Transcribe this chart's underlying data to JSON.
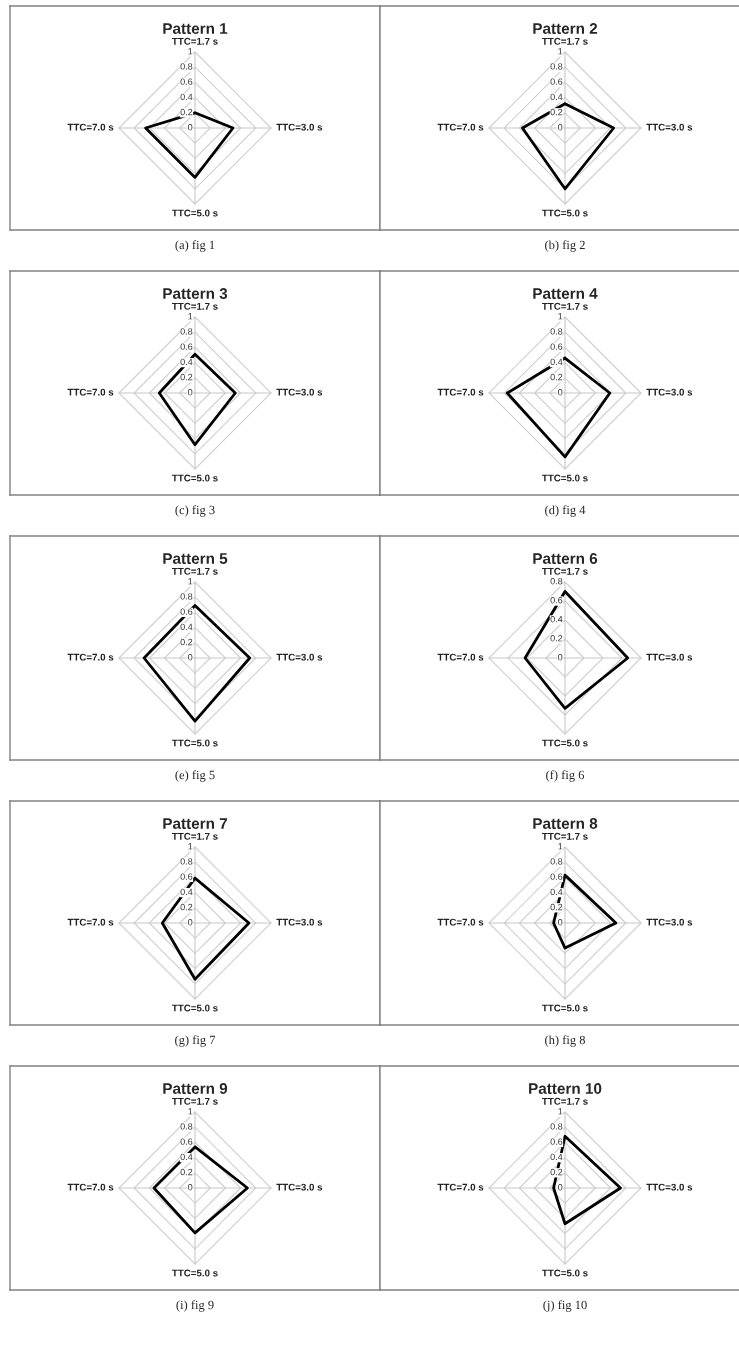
{
  "chart_data": [
    {
      "type": "radar",
      "title": "Pattern 1",
      "categories": [
        "TTC=1.7 s",
        "TTC=3.0 s",
        "TTC=5.0 s",
        "TTC=7.0 s"
      ],
      "series": [
        {
          "color": "#000000",
          "values": [
            0.2,
            0.5,
            0.65,
            0.65
          ]
        }
      ],
      "ylim": [
        0,
        1
      ],
      "yticks": [
        0,
        0.2,
        0.4,
        0.6,
        0.8,
        1
      ],
      "grid": true,
      "annotations": [
        "(a) fig 1"
      ]
    },
    {
      "type": "radar",
      "title": "Pattern 2",
      "categories": [
        "TTC=1.7 s",
        "TTC=3.0 s",
        "TTC=5.0 s",
        "TTC=7.0 s"
      ],
      "series": [
        {
          "color": "#000000",
          "values": [
            0.32,
            0.64,
            0.8,
            0.56
          ]
        }
      ],
      "ylim": [
        0,
        1
      ],
      "yticks": [
        0,
        0.2,
        0.4,
        0.6,
        0.8,
        1
      ],
      "grid": true,
      "annotations": [
        "(b) fig 2"
      ]
    },
    {
      "type": "radar",
      "title": "Pattern 3",
      "categories": [
        "TTC=1.7 s",
        "TTC=3.0 s",
        "TTC=5.0 s",
        "TTC=7.0 s"
      ],
      "series": [
        {
          "color": "#000000",
          "values": [
            0.51,
            0.53,
            0.68,
            0.47
          ]
        }
      ],
      "ylim": [
        0,
        1
      ],
      "yticks": [
        0,
        0.2,
        0.4,
        0.6,
        0.8,
        1
      ],
      "grid": true,
      "annotations": [
        "(c) fig 3"
      ]
    },
    {
      "type": "radar",
      "title": "Pattern 4",
      "categories": [
        "TTC=1.7 s",
        "TTC=3.0 s",
        "TTC=5.0 s",
        "TTC=7.0 s"
      ],
      "series": [
        {
          "color": "#000000",
          "values": [
            0.46,
            0.59,
            0.84,
            0.76
          ]
        }
      ],
      "ylim": [
        0,
        1
      ],
      "yticks": [
        0,
        0.2,
        0.4,
        0.6,
        0.8,
        1
      ],
      "grid": true,
      "annotations": [
        "(d) fig 4"
      ]
    },
    {
      "type": "radar",
      "title": "Pattern 5",
      "categories": [
        "TTC=1.7 s",
        "TTC=3.0 s",
        "TTC=5.0 s",
        "TTC=7.0 s"
      ],
      "series": [
        {
          "color": "#000000",
          "values": [
            0.69,
            0.72,
            0.83,
            0.67
          ]
        }
      ],
      "ylim": [
        0,
        1
      ],
      "yticks": [
        0,
        0.2,
        0.4,
        0.6,
        0.8,
        1
      ],
      "grid": true,
      "annotations": [
        "(e) fig 5"
      ]
    },
    {
      "type": "radar",
      "title": "Pattern 6",
      "categories": [
        "TTC=1.7 s",
        "TTC=3.0 s",
        "TTC=5.0 s",
        "TTC=7.0 s"
      ],
      "series": [
        {
          "color": "#000000",
          "values": [
            0.7,
            0.66,
            0.53,
            0.42
          ]
        }
      ],
      "ylim": [
        0,
        0.8
      ],
      "yticks": [
        0,
        0.2,
        0.4,
        0.6,
        0.8
      ],
      "grid": true,
      "annotations": [
        "(f) fig 6"
      ]
    },
    {
      "type": "radar",
      "title": "Pattern 7",
      "categories": [
        "TTC=1.7 s",
        "TTC=3.0 s",
        "TTC=5.0 s",
        "TTC=7.0 s"
      ],
      "series": [
        {
          "color": "#000000",
          "values": [
            0.59,
            0.71,
            0.74,
            0.43
          ]
        }
      ],
      "ylim": [
        0,
        1
      ],
      "yticks": [
        0,
        0.2,
        0.4,
        0.6,
        0.8,
        1
      ],
      "grid": true,
      "annotations": [
        "(g) fig 7"
      ]
    },
    {
      "type": "radar",
      "title": "Pattern 8",
      "categories": [
        "TTC=1.7 s",
        "TTC=3.0 s",
        "TTC=5.0 s",
        "TTC=7.0 s"
      ],
      "series": [
        {
          "color": "#000000",
          "values": [
            0.63,
            0.67,
            0.33,
            0.15
          ]
        }
      ],
      "ylim": [
        0,
        1
      ],
      "yticks": [
        0,
        0.2,
        0.4,
        0.6,
        0.8,
        1
      ],
      "grid": true,
      "annotations": [
        "(h) fig 8"
      ]
    },
    {
      "type": "radar",
      "title": "Pattern 9",
      "categories": [
        "TTC=1.7 s",
        "TTC=3.0 s",
        "TTC=5.0 s",
        "TTC=7.0 s"
      ],
      "series": [
        {
          "color": "#000000",
          "values": [
            0.54,
            0.69,
            0.59,
            0.54
          ]
        }
      ],
      "ylim": [
        0,
        1
      ],
      "yticks": [
        0,
        0.2,
        0.4,
        0.6,
        0.8,
        1
      ],
      "grid": true,
      "annotations": [
        "(i) fig 9"
      ]
    },
    {
      "type": "radar",
      "title": "Pattern 10",
      "categories": [
        "TTC=1.7 s",
        "TTC=3.0 s",
        "TTC=5.0 s",
        "TTC=7.0 s"
      ],
      "series": [
        {
          "color": "#000000",
          "values": [
            0.68,
            0.73,
            0.47,
            0.15
          ]
        }
      ],
      "ylim": [
        0,
        1
      ],
      "yticks": [
        0,
        0.2,
        0.4,
        0.6,
        0.8,
        1
      ],
      "grid": true,
      "annotations": [
        "(j) fig 10"
      ]
    }
  ]
}
